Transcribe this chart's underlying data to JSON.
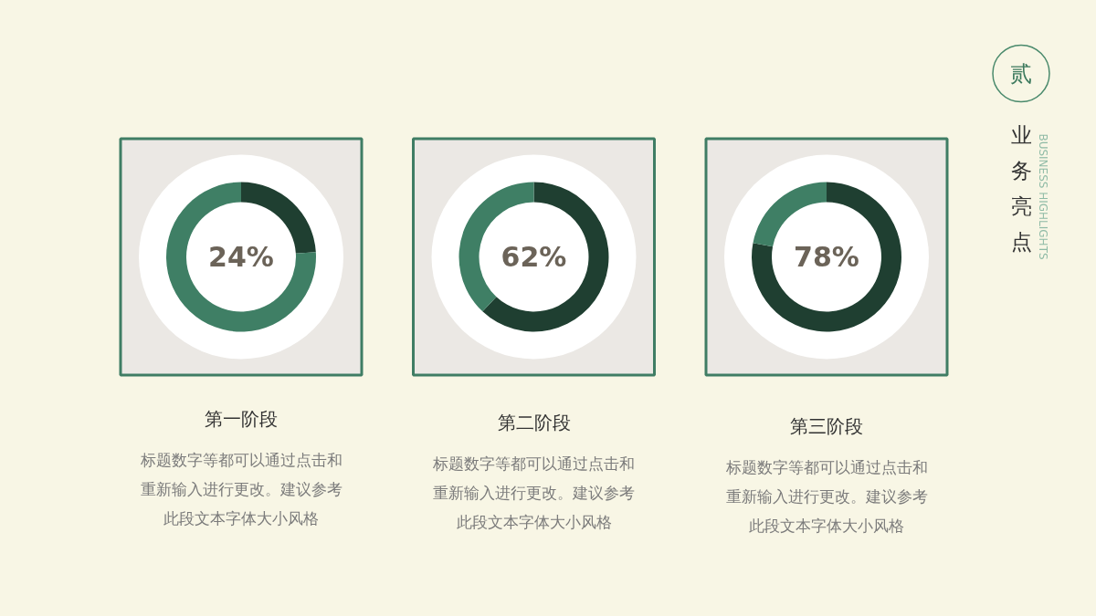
{
  "chart_data": [
    {
      "type": "donut",
      "title": "第一阶段",
      "categories": [
        null,
        null
      ],
      "values": [
        24,
        76
      ],
      "colors": [
        "#1f3f31",
        "#3f7f65"
      ],
      "value_labels": [
        "24%",
        null
      ],
      "annotations": [
        "标题数字等都可以通过点击和重新输入进行更改。建议参考此段文本字体大小风格"
      ]
    },
    {
      "type": "donut",
      "title": "第二阶段",
      "categories": [
        null,
        null
      ],
      "values": [
        62,
        38
      ],
      "colors": [
        "#1f3f31",
        "#3f7f65"
      ],
      "value_labels": [
        "62%",
        null
      ],
      "annotations": [
        "标题数字等都可以通过点击和重新输入进行更改。建议参考此段文本字体大小风格"
      ]
    },
    {
      "type": "donut",
      "title": "第三阶段",
      "categories": [
        null,
        null
      ],
      "values": [
        78,
        22
      ],
      "colors": [
        "#1f3f31",
        "#3f7f65"
      ],
      "value_labels": [
        "78%",
        null
      ],
      "annotations": [
        "标题数字等都可以通过点击和重新输入进行更改。建议参考此段文本字体大小风格"
      ]
    },
    {
      "type": "other",
      "title": "业务亮点",
      "subtitle": "BUSINESS HIGHLIGHTS",
      "annotations": [
        "贰"
      ]
    }
  ]
}
